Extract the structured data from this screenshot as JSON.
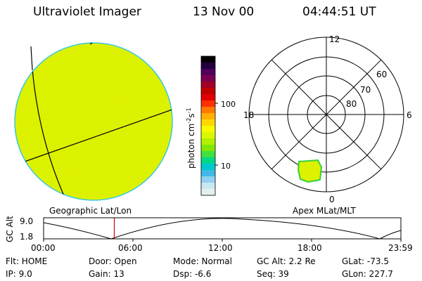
{
  "header": {
    "instrument": "Ultraviolet Imager",
    "date": "13 Nov 00",
    "time": "04:44:51 UT"
  },
  "colorbar": {
    "label_text": "photon cm",
    "label_exp": "-2",
    "label_s": "s",
    "label_exp2": "-1",
    "ticks": [
      "100",
      "10"
    ],
    "colors": [
      "#000000",
      "#200040",
      "#50005a",
      "#7a0050",
      "#a00028",
      "#c00000",
      "#e00000",
      "#ff3000",
      "#ff7800",
      "#ffb000",
      "#ffd800",
      "#f8f800",
      "#d8f800",
      "#b0f000",
      "#80e800",
      "#40e040",
      "#00d888",
      "#00c8d0",
      "#40b8e8",
      "#90d0f0",
      "#c8e8f0",
      "#e6eef0"
    ]
  },
  "left_panel": {
    "caption": "Geographic Lat/Lon",
    "disk_color": "#dff200",
    "edge_color": "#38c8e0"
  },
  "right_panel": {
    "caption": "Apex MLat/MLT",
    "mlt_labels": [
      "12",
      "18",
      "6",
      "0"
    ],
    "lat_labels": [
      "60",
      "70",
      "80"
    ],
    "blob_color": "#dff200",
    "blob_edge": "#30d040"
  },
  "timeline": {
    "axis_label": "GC Alt",
    "ytick_top": "9.0",
    "ytick_bottom": "1.8",
    "xticks": [
      "00:00",
      "06:00",
      "12:00",
      "18:00",
      "23:59"
    ],
    "current_time_hours": 4.75,
    "marker_color": "#cc0000"
  },
  "info": {
    "flt": "Flt: HOME",
    "ip": "IP:  9.0",
    "door": "Door: Open",
    "gain": "Gain: 13",
    "mode": "Mode: Normal",
    "dsp": "Dsp:    -6.6",
    "gcalt": "GC Alt: 2.2 Re",
    "seq": "Seq: 39",
    "glat": "GLat:  -73.5",
    "glon": "GLon: 227.7"
  }
}
